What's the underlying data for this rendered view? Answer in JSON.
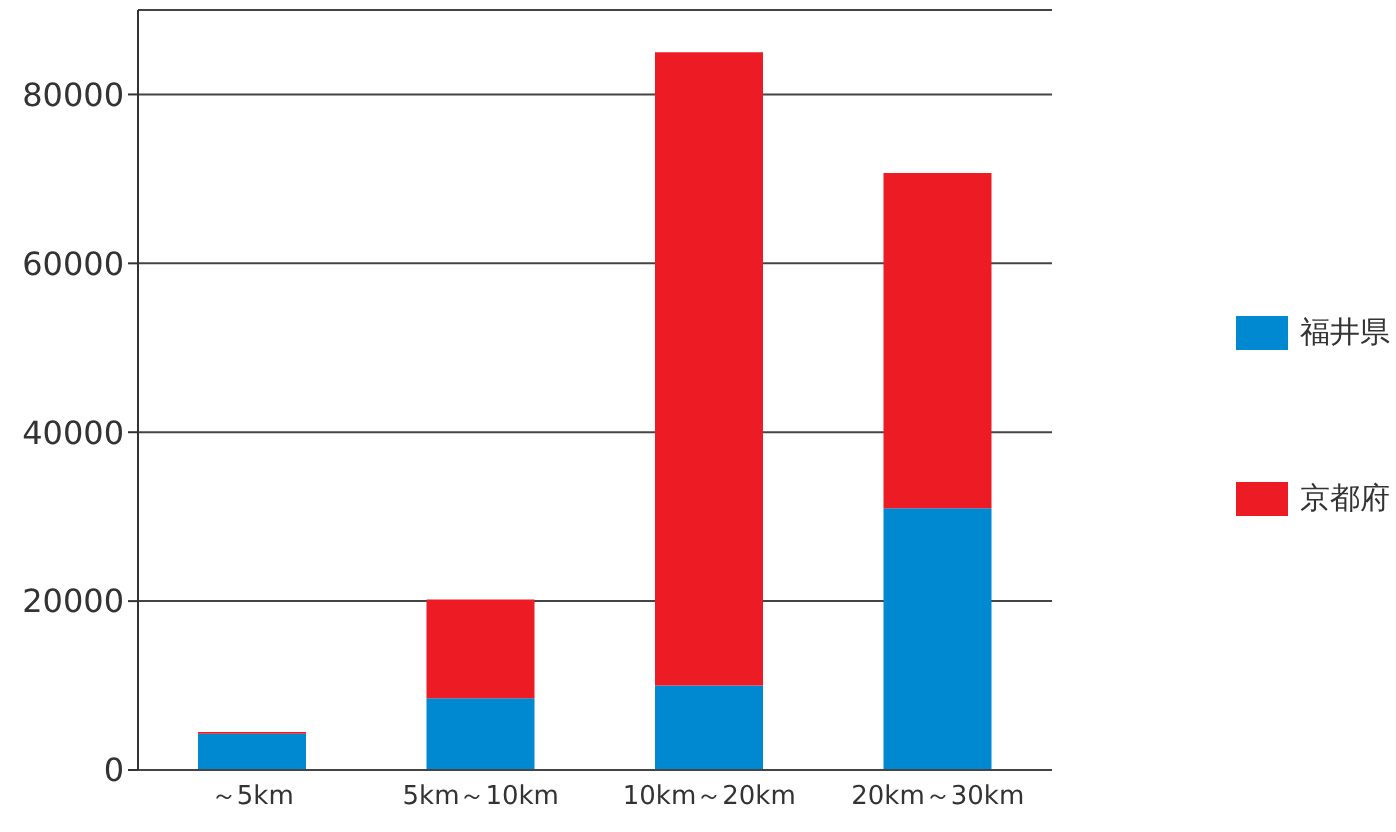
{
  "chart_data": {
    "type": "bar",
    "stacked": true,
    "categories": [
      "～5km",
      "5km～10km",
      "10km～20km",
      "20km～30km"
    ],
    "series": [
      {
        "name": "福井県",
        "color": "#0088d1",
        "values": [
          4300,
          8500,
          10000,
          31000
        ]
      },
      {
        "name": "京都府",
        "color": "#ed1c24",
        "values": [
          200,
          11700,
          75000,
          39700
        ]
      }
    ],
    "ylim": [
      0,
      90000
    ],
    "yticks": [
      0,
      20000,
      40000,
      60000,
      80000
    ],
    "grid": "y",
    "legend": "right"
  }
}
